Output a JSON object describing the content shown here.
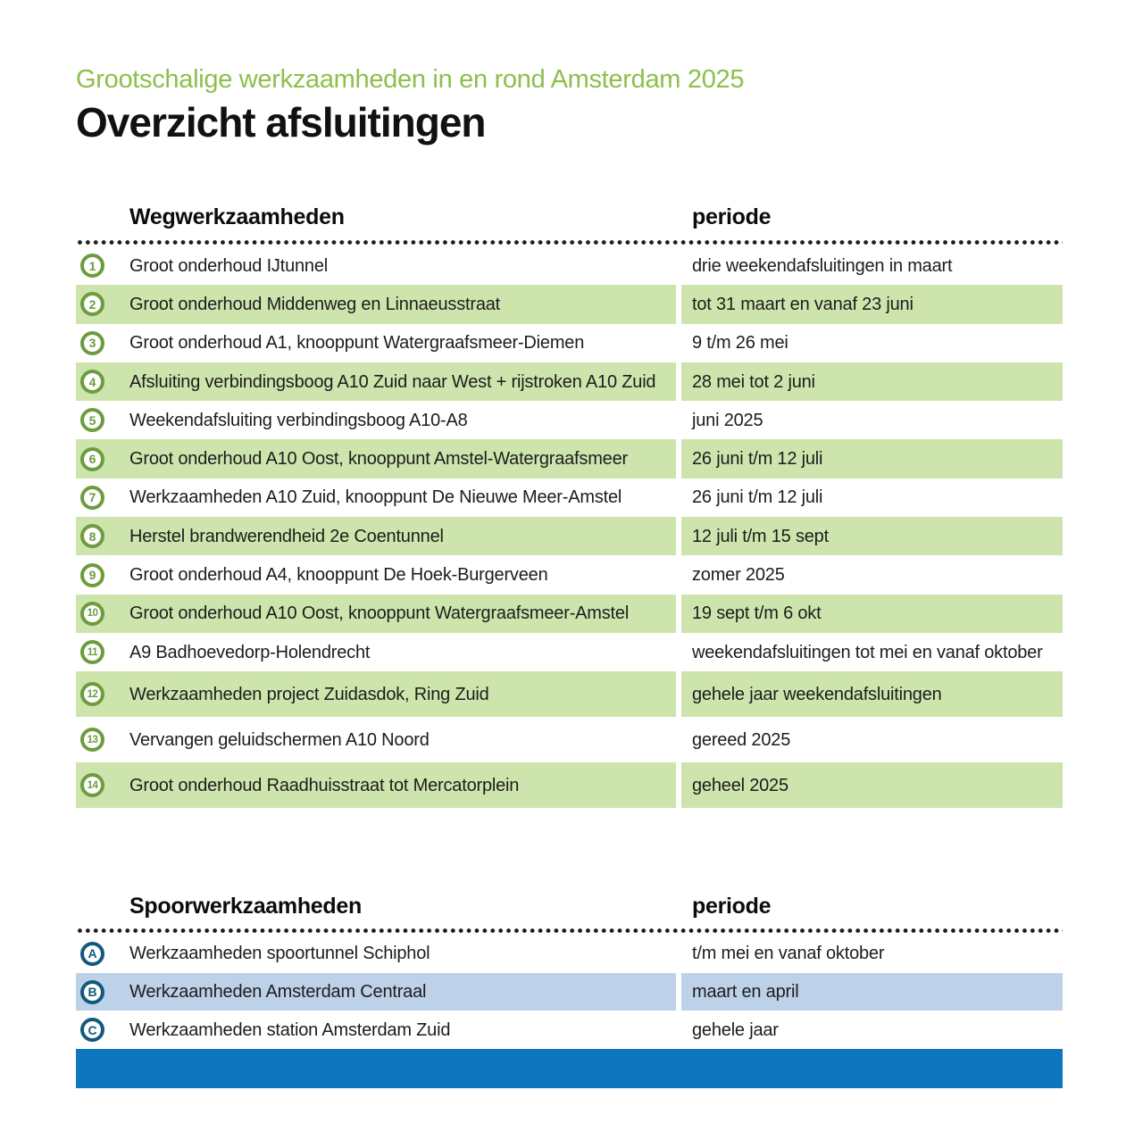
{
  "page": {
    "subtitle": "Grootschalige werkzaamheden in en rond Amsterdam 2025",
    "title": "Overzicht afsluitingen"
  },
  "colors": {
    "subtitle_green": "#8CC04B",
    "road_badge_green": "#6D9C3E",
    "road_stripe_green": "#CDE5AD",
    "rail_badge_blue": "#14587E",
    "rail_stripe_blue": "#BDD2E8",
    "footer_bar_blue": "#0E76BD",
    "text_dark": "#1C1C1C",
    "dot_black": "#1A1A1A"
  },
  "road_table": {
    "header": {
      "col1": "Wegwerkzaamheden",
      "col2": "periode"
    },
    "rows": [
      {
        "badge": "1",
        "label": "Groot onderhoud IJtunnel",
        "period": "drie weekendafsluitingen in maart"
      },
      {
        "badge": "2",
        "label": "Groot onderhoud Middenweg en Linnaeusstraat",
        "period": "tot 31 maart en vanaf 23 juni"
      },
      {
        "badge": "3",
        "label": "Groot onderhoud A1, knooppunt Watergraafsmeer-Diemen",
        "period": "9 t/m 26 mei"
      },
      {
        "badge": "4",
        "label": "Afsluiting verbindingsboog A10 Zuid naar West + rijstroken A10 Zuid",
        "period": "28 mei tot 2 juni"
      },
      {
        "badge": "5",
        "label": "Weekendafsluiting verbindingsboog A10-A8",
        "period": "juni 2025"
      },
      {
        "badge": "6",
        "label": "Groot onderhoud A10 Oost, knooppunt Amstel-Watergraafsmeer",
        "period": "26 juni t/m 12 juli"
      },
      {
        "badge": "7",
        "label": "Werkzaamheden A10 Zuid, knooppunt De Nieuwe Meer-Amstel",
        "period": "26 juni t/m 12 juli"
      },
      {
        "badge": "8",
        "label": "Herstel brandwerendheid 2e Coentunnel",
        "period": "12 juli t/m 15 sept"
      },
      {
        "badge": "9",
        "label": "Groot onderhoud A4, knooppunt De Hoek-Burgerveen",
        "period": "zomer 2025"
      },
      {
        "badge": "10",
        "label": "Groot onderhoud A10 Oost, knooppunt Watergraafsmeer-Amstel",
        "period": "19 sept t/m 6 okt"
      },
      {
        "badge": "11",
        "label": "A9 Badhoevedorp-Holendrecht",
        "period": "weekendafsluitingen tot mei en vanaf oktober"
      },
      {
        "badge": "12",
        "label": "Werkzaamheden project Zuidasdok, Ring Zuid",
        "period": "gehele jaar weekendafsluitingen"
      },
      {
        "badge": "13",
        "label": "Vervangen geluidschermen A10 Noord",
        "period": "gereed 2025"
      },
      {
        "badge": "14",
        "label": "Groot onderhoud Raadhuisstraat tot Mercatorplein",
        "period": "geheel 2025"
      }
    ]
  },
  "rail_table": {
    "header": {
      "col1": "Spoorwerkzaamheden",
      "col2": "periode"
    },
    "rows": [
      {
        "badge": "A",
        "label": "Werkzaamheden spoortunnel Schiphol",
        "period": "t/m mei en vanaf oktober"
      },
      {
        "badge": "B",
        "label": "Werkzaamheden Amsterdam Centraal",
        "period": "maart en april"
      },
      {
        "badge": "C",
        "label": "Werkzaamheden station Amsterdam Zuid",
        "period": "gehele jaar"
      }
    ]
  }
}
